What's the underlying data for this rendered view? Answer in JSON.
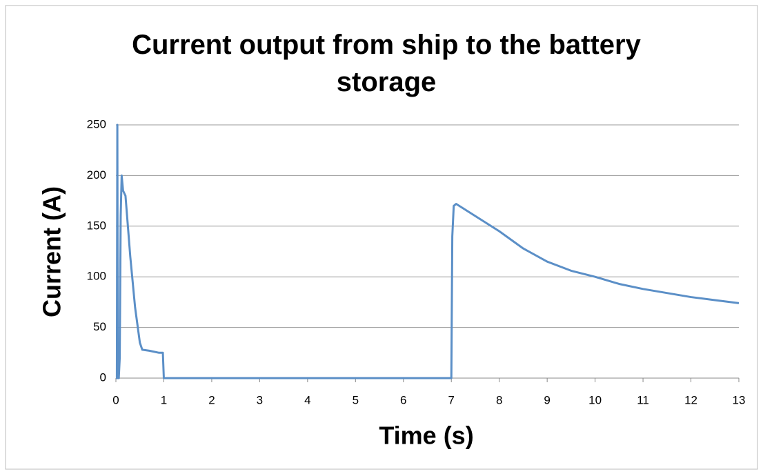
{
  "chart_data": {
    "type": "line",
    "title": "Current output from ship to the battery storage",
    "xlabel": "Time (s)",
    "ylabel": "Current (A)",
    "series": [
      {
        "color": "#5b8fc7",
        "x": [
          0,
          0.02,
          0.03,
          0.04,
          0.06,
          0.08,
          0.1,
          0.12,
          0.15,
          0.2,
          0.25,
          0.3,
          0.4,
          0.5,
          0.55,
          0.7,
          0.9,
          0.98,
          1.0,
          7.0,
          7.02,
          7.05,
          7.1,
          7.5,
          8,
          8.5,
          9,
          9.5,
          10,
          10.5,
          11,
          11.5,
          12,
          12.5,
          13
        ],
        "values": [
          0,
          0,
          250,
          0,
          0,
          20,
          160,
          200,
          185,
          180,
          150,
          120,
          70,
          35,
          28,
          27,
          25,
          25,
          0,
          0,
          140,
          170,
          172,
          160,
          145,
          128,
          115,
          106,
          100,
          93,
          88,
          84,
          80,
          77,
          74
        ]
      }
    ],
    "xlim": [
      0,
      13
    ],
    "xticks": [
      0,
      1,
      2,
      3,
      4,
      5,
      6,
      7,
      8,
      9,
      10,
      11,
      12,
      13
    ],
    "ylim": [
      0,
      250
    ],
    "yticks": [
      0,
      50,
      100,
      150,
      200,
      250
    ],
    "grid": true
  }
}
